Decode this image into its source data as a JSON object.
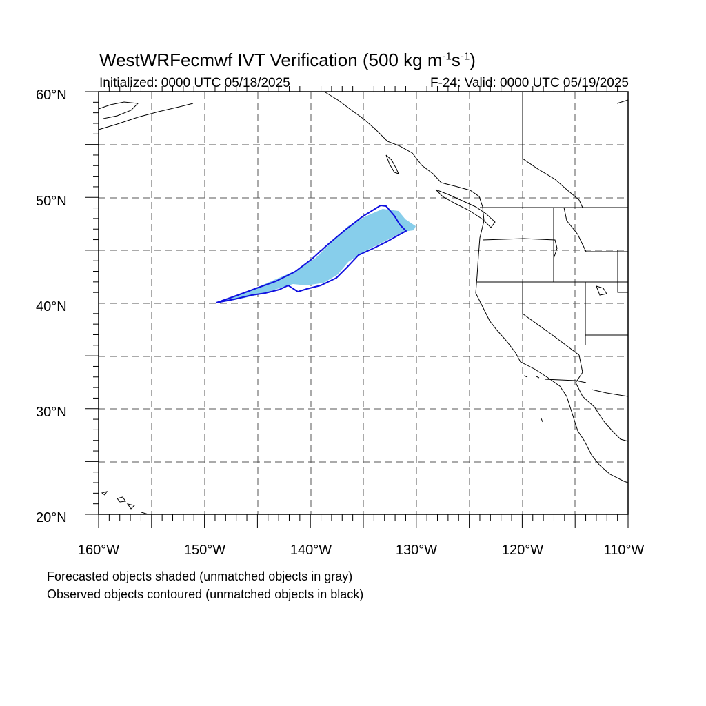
{
  "title": {
    "prefix": "WestWRFecmwf IVT Verification (500 kg m",
    "exp1": "-1",
    "mid": "s",
    "exp2": "-1",
    "suffix": ")"
  },
  "initialized": "Initialized: 0000 UTC 05/18/2025",
  "valid": "F-24: Valid: 0000 UTC 05/19/2025",
  "legend": {
    "line1": "Forecasted objects shaded (unmatched objects in gray)",
    "line2": "Observed objects contoured (unmatched objects in black)"
  },
  "axes": {
    "lat_labels": [
      "20°N",
      "30°N",
      "40°N",
      "50°N",
      "60°N"
    ],
    "lon_labels": [
      "160°W",
      "150°W",
      "140°W",
      "130°W",
      "120°W",
      "110°W"
    ]
  },
  "colors": {
    "forecast_fill": "#87ceeb",
    "observed_contour": "#1010e0",
    "grid": "#555555",
    "coast": "#000000"
  }
}
